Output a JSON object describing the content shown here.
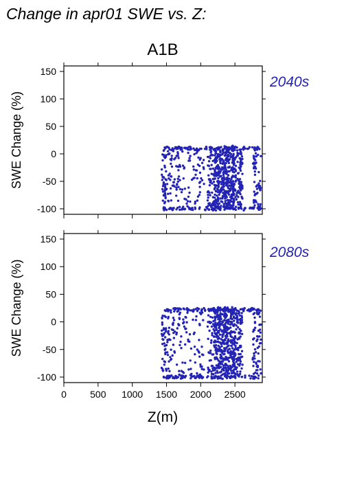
{
  "title": "Change in apr01 SWE vs. Z:",
  "scenario": "A1B",
  "colors": {
    "points": "#2323b4",
    "panel_label": "#2323b4",
    "axis": "#000000"
  },
  "chart_data": [
    {
      "type": "scatter",
      "panel_label": "2040s",
      "xlabel": "Z(m)",
      "ylabel": "SWE Change (%)",
      "xlim": [
        0,
        2900
      ],
      "ylim": [
        -110,
        160
      ],
      "xticks": [
        0,
        500,
        1000,
        1500,
        2000,
        2500
      ],
      "yticks": [
        -100,
        -50,
        0,
        50,
        100,
        150
      ],
      "xtick_labels": [],
      "ytick_labels": [
        "-100",
        "-50",
        "0",
        "50",
        "100",
        "150"
      ],
      "clusters": [
        {
          "xmin": 1430,
          "xmax": 1500,
          "ymin": -100,
          "ymax": 12,
          "n": 45
        },
        {
          "xmin": 1500,
          "xmax": 1750,
          "ymin": -100,
          "ymax": 12,
          "n": 70
        },
        {
          "xmin": 1750,
          "xmax": 2050,
          "ymin": -100,
          "ymax": 12,
          "n": 55
        },
        {
          "xmin": 2100,
          "xmax": 2200,
          "ymin": -100,
          "ymax": 12,
          "n": 55
        },
        {
          "xmin": 2200,
          "xmax": 2500,
          "ymin": -100,
          "ymax": 15,
          "n": 420
        },
        {
          "xmin": 2500,
          "xmax": 2610,
          "ymin": -100,
          "ymax": 12,
          "n": 90
        },
        {
          "xmin": 2760,
          "xmax": 2880,
          "ymin": -100,
          "ymax": 10,
          "n": 60
        }
      ],
      "band_points": [
        {
          "xmin": 1440,
          "xmax": 2880,
          "y": 10,
          "n": 90
        },
        {
          "xmin": 1440,
          "xmax": 2880,
          "y": -100,
          "n": 80
        }
      ]
    },
    {
      "type": "scatter",
      "panel_label": "2080s",
      "xlabel": "Z(m)",
      "ylabel": "SWE Change (%)",
      "xlim": [
        0,
        2900
      ],
      "ylim": [
        -110,
        160
      ],
      "xticks": [
        0,
        500,
        1000,
        1500,
        2000,
        2500
      ],
      "yticks": [
        -100,
        -50,
        0,
        50,
        100,
        150
      ],
      "xtick_labels": [
        "0",
        "500",
        "1000",
        "1500",
        "2000",
        "2500"
      ],
      "ytick_labels": [
        "-100",
        "-50",
        "0",
        "50",
        "100",
        "150"
      ],
      "clusters": [
        {
          "xmin": 1430,
          "xmax": 1500,
          "ymin": -100,
          "ymax": 25,
          "n": 40
        },
        {
          "xmin": 1500,
          "xmax": 1750,
          "ymin": -100,
          "ymax": 25,
          "n": 70
        },
        {
          "xmin": 1750,
          "xmax": 2050,
          "ymin": -100,
          "ymax": 25,
          "n": 55
        },
        {
          "xmin": 2100,
          "xmax": 2200,
          "ymin": -100,
          "ymax": 25,
          "n": 55
        },
        {
          "xmin": 2200,
          "xmax": 2500,
          "ymin": -100,
          "ymax": 27,
          "n": 420
        },
        {
          "xmin": 2500,
          "xmax": 2610,
          "ymin": -100,
          "ymax": 20,
          "n": 90
        },
        {
          "xmin": 2760,
          "xmax": 2880,
          "ymin": -100,
          "ymax": 17,
          "n": 60
        }
      ],
      "band_points": [
        {
          "xmin": 1440,
          "xmax": 2880,
          "y": 22,
          "n": 90
        },
        {
          "xmin": 1440,
          "xmax": 2880,
          "y": -100,
          "n": 90
        }
      ]
    }
  ]
}
